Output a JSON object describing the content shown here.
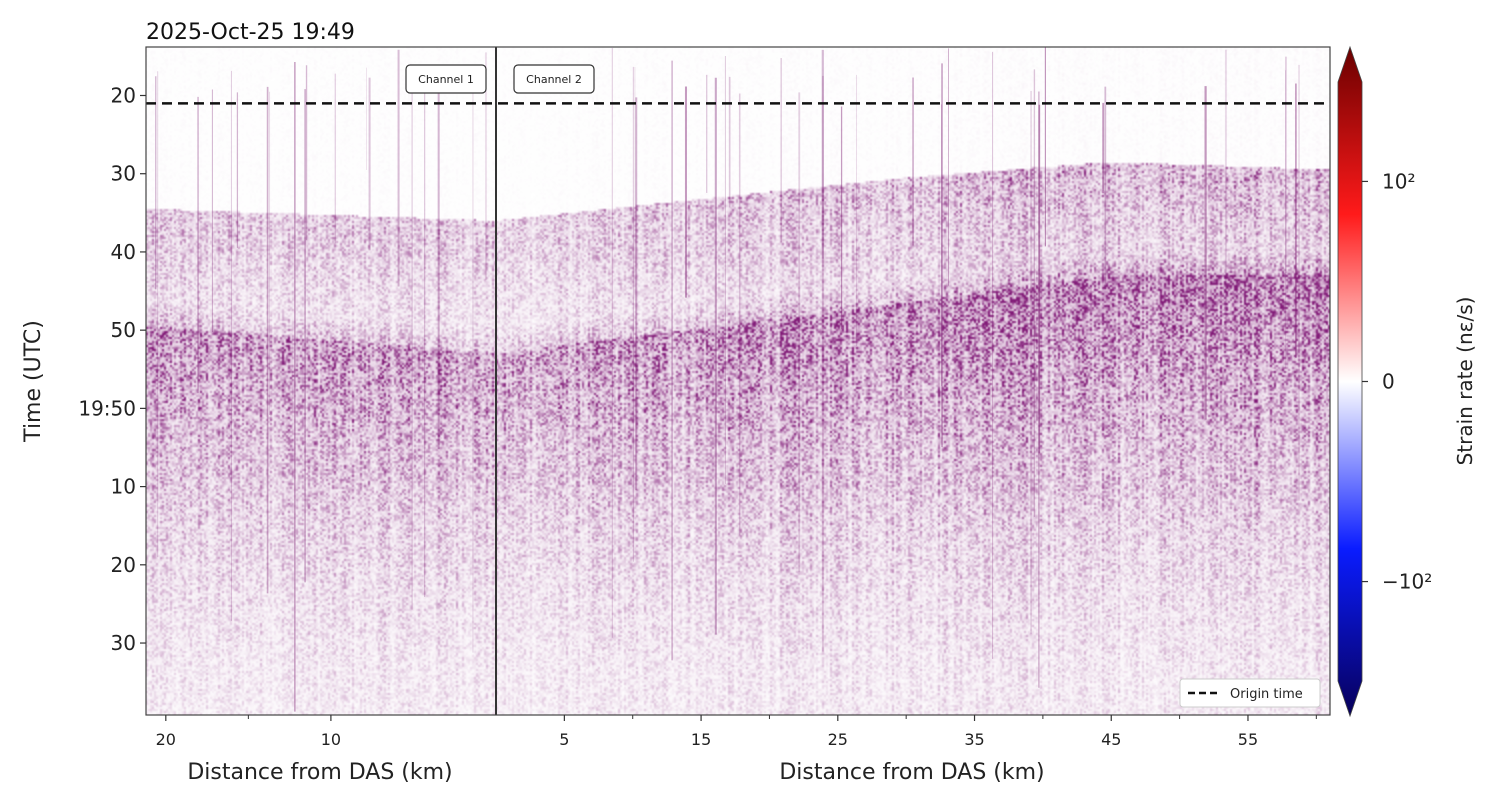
{
  "chart_data": {
    "type": "heatmap",
    "title": "2025-Oct-25 19:49",
    "ylabel": "Time (UTC)",
    "y_tick_labels": [
      "20",
      "30",
      "40",
      "50",
      "19:50",
      "10",
      "20",
      "30"
    ],
    "ylim_seconds": [
      13.8,
      99.2
    ],
    "origin_time_seconds": 21.0,
    "das_position_km": 0,
    "colorbar": {
      "label": "Strain rate (nε/s)",
      "tick_labels": [
        "10²",
        "0",
        "−10²"
      ],
      "tick_values": [
        100,
        0,
        -100
      ],
      "colors": [
        "#08005a",
        "#0a1cff",
        "#ffffff",
        "#ff1a1a",
        "#6a0000"
      ],
      "extend": "both",
      "scale": "symlog"
    },
    "x_axes": [
      {
        "side": "left",
        "label": "Distance from DAS (km)",
        "tick_labels": [
          "20",
          "10"
        ],
        "tick_values": [
          20,
          10
        ],
        "range_km": [
          21.2,
          0
        ],
        "direction": "decreasing"
      },
      {
        "side": "right",
        "label": "Distance from DAS (km)",
        "tick_labels": [
          "5",
          "15",
          "25",
          "35",
          "45",
          "55"
        ],
        "tick_values": [
          5,
          15,
          25,
          35,
          45,
          55
        ],
        "range_km": [
          0,
          61
        ],
        "direction": "increasing"
      }
    ],
    "channels": [
      {
        "label": "Channel 1",
        "side": "left"
      },
      {
        "label": "Channel 2",
        "side": "right"
      }
    ],
    "legend": {
      "entries": [
        "Origin time"
      ],
      "position": "lower right",
      "style": "dashed black line"
    },
    "grid": false,
    "wavefield": {
      "colorscale_seen": "purple (positive and negative amplitudes mixed)",
      "p_arrival_onset_seconds": {
        "left_0km": 36.0,
        "left_21km": 34.5,
        "right_30km": 30.5,
        "right_45km": 28.5,
        "right_60km": 29.5
      },
      "s_arrival_onset_seconds": {
        "left_0km": 53.0,
        "left_21km": 49.5,
        "right_30km": 46.5,
        "right_45km": 43.0
      }
    }
  }
}
